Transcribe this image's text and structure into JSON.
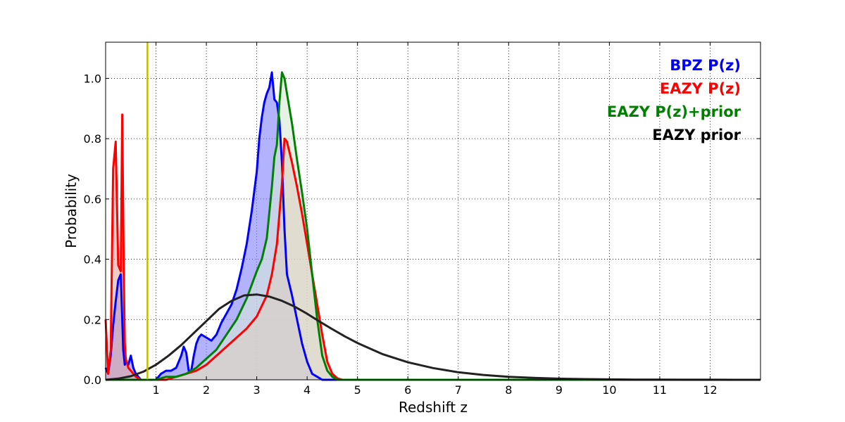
{
  "chart_data": {
    "type": "area",
    "title": "",
    "xlabel": "Redshift z",
    "ylabel": "Probability",
    "xlim": [
      0,
      13
    ],
    "ylim": [
      0,
      1.12
    ],
    "x_ticks": [
      1,
      2,
      3,
      4,
      5,
      6,
      7,
      8,
      9,
      10,
      11,
      12
    ],
    "x_tick_labels": [
      "1",
      "2",
      "3",
      "4",
      "5",
      "6",
      "7",
      "8",
      "9",
      "10",
      "11",
      "12"
    ],
    "y_ticks": [
      0,
      0.2,
      0.4,
      0.6,
      0.8,
      1.0
    ],
    "y_tick_labels": [
      "0.0",
      "0.2",
      "0.4",
      "0.6",
      "0.8",
      "1.0"
    ],
    "grid": true,
    "grid_style": "dotted",
    "legend_placement": "top-right",
    "reference_line": {
      "axis": "x",
      "value": 0.83,
      "color": "#bfbf00"
    },
    "series": [
      {
        "name": "BPZ P(z)",
        "color": "#0000ff",
        "fill": "#7f7fff",
        "filled": true,
        "x": [
          0.0,
          0.05,
          0.1,
          0.15,
          0.2,
          0.25,
          0.3,
          0.35,
          0.38,
          0.4,
          0.45,
          0.5,
          0.55,
          0.6,
          0.65,
          0.7,
          0.8,
          0.9,
          1.0,
          1.05,
          1.1,
          1.2,
          1.3,
          1.4,
          1.5,
          1.55,
          1.6,
          1.65,
          1.7,
          1.75,
          1.8,
          1.85,
          1.9,
          2.0,
          2.1,
          2.2,
          2.3,
          2.4,
          2.5,
          2.6,
          2.7,
          2.8,
          2.9,
          3.0,
          3.05,
          3.1,
          3.15,
          3.2,
          3.25,
          3.3,
          3.35,
          3.4,
          3.45,
          3.5,
          3.55,
          3.6,
          3.7,
          3.8,
          3.9,
          4.0,
          4.1,
          4.2,
          4.3,
          4.4,
          4.5,
          4.6,
          4.8,
          5.0,
          13.0
        ],
        "y": [
          0.04,
          0.02,
          0.08,
          0.18,
          0.26,
          0.33,
          0.35,
          0.1,
          0.05,
          0.06,
          0.05,
          0.08,
          0.04,
          0.02,
          0.01,
          0.0,
          0.0,
          0.0,
          0.0,
          0.01,
          0.02,
          0.03,
          0.03,
          0.04,
          0.08,
          0.11,
          0.09,
          0.03,
          0.03,
          0.08,
          0.12,
          0.14,
          0.15,
          0.14,
          0.13,
          0.15,
          0.19,
          0.22,
          0.25,
          0.3,
          0.37,
          0.45,
          0.56,
          0.69,
          0.8,
          0.87,
          0.92,
          0.95,
          0.97,
          1.02,
          0.93,
          0.92,
          0.86,
          0.72,
          0.5,
          0.35,
          0.28,
          0.2,
          0.12,
          0.06,
          0.02,
          0.01,
          0.0,
          0.0,
          0.0,
          0.0,
          0.0,
          0.0,
          0.0
        ]
      },
      {
        "name": "EAZY P(z)",
        "color": "#ff0000",
        "fill": "#e3a9a0",
        "filled": true,
        "x": [
          0.0,
          0.05,
          0.1,
          0.15,
          0.2,
          0.25,
          0.3,
          0.33,
          0.36,
          0.38,
          0.4,
          0.45,
          0.5,
          0.55,
          0.6,
          0.7,
          0.8,
          1.0,
          1.2,
          1.4,
          1.6,
          1.8,
          2.0,
          2.2,
          2.4,
          2.6,
          2.8,
          3.0,
          3.2,
          3.3,
          3.4,
          3.5,
          3.55,
          3.6,
          3.7,
          3.8,
          3.9,
          4.0,
          4.1,
          4.2,
          4.3,
          4.4,
          4.5,
          4.6,
          4.7,
          5.0,
          13.0
        ],
        "y": [
          0.2,
          0.02,
          0.1,
          0.7,
          0.79,
          0.38,
          0.36,
          0.88,
          0.35,
          0.12,
          0.07,
          0.04,
          0.03,
          0.02,
          0.01,
          0.0,
          0.0,
          0.0,
          0.0,
          0.01,
          0.02,
          0.03,
          0.05,
          0.08,
          0.11,
          0.14,
          0.17,
          0.21,
          0.28,
          0.35,
          0.45,
          0.65,
          0.8,
          0.79,
          0.72,
          0.64,
          0.55,
          0.45,
          0.35,
          0.25,
          0.15,
          0.06,
          0.02,
          0.005,
          0.0,
          0.0,
          0.0
        ]
      },
      {
        "name": "EAZY P(z)+prior",
        "color": "#008000",
        "fill": "#d7ead7",
        "filled": true,
        "x": [
          0.0,
          0.2,
          0.4,
          0.6,
          0.8,
          1.0,
          1.2,
          1.4,
          1.6,
          1.8,
          2.0,
          2.2,
          2.4,
          2.6,
          2.8,
          3.0,
          3.1,
          3.2,
          3.3,
          3.35,
          3.4,
          3.45,
          3.5,
          3.55,
          3.6,
          3.7,
          3.8,
          3.9,
          4.0,
          4.1,
          4.2,
          4.3,
          4.4,
          4.5,
          4.6,
          5.0,
          13.0
        ],
        "y": [
          0.0,
          0.0,
          0.0,
          0.0,
          0.0,
          0.0,
          0.01,
          0.01,
          0.02,
          0.04,
          0.07,
          0.1,
          0.15,
          0.2,
          0.27,
          0.36,
          0.4,
          0.47,
          0.64,
          0.74,
          0.78,
          0.92,
          1.02,
          1.0,
          0.95,
          0.85,
          0.73,
          0.62,
          0.5,
          0.35,
          0.2,
          0.08,
          0.03,
          0.01,
          0.0,
          0.0,
          0.0
        ]
      },
      {
        "name": "EAZY prior",
        "color": "#222222",
        "fill": "",
        "filled": false,
        "x": [
          0.0,
          0.25,
          0.5,
          0.75,
          1.0,
          1.25,
          1.5,
          1.75,
          2.0,
          2.25,
          2.5,
          2.75,
          3.0,
          3.25,
          3.5,
          3.75,
          4.0,
          4.25,
          4.5,
          4.75,
          5.0,
          5.5,
          6.0,
          6.5,
          7.0,
          7.5,
          8.0,
          8.5,
          9.0,
          9.5,
          10.0,
          10.5,
          11.0,
          11.5,
          12.0,
          12.5,
          13.0
        ],
        "y": [
          0.0,
          0.004,
          0.012,
          0.027,
          0.05,
          0.08,
          0.115,
          0.155,
          0.195,
          0.235,
          0.262,
          0.28,
          0.283,
          0.276,
          0.262,
          0.243,
          0.219,
          0.193,
          0.168,
          0.144,
          0.122,
          0.085,
          0.058,
          0.039,
          0.025,
          0.016,
          0.01,
          0.0062,
          0.0038,
          0.0023,
          0.0014,
          0.0008,
          0.0005,
          0.0003,
          0.0002,
          0.0001,
          0.0
        ]
      }
    ],
    "legend": [
      {
        "text": "BPZ P(z)",
        "color": "#0000ff"
      },
      {
        "text": "EAZY P(z)",
        "color": "#ff0000"
      },
      {
        "text": "EAZY P(z)+prior",
        "color": "#008000"
      },
      {
        "text": "EAZY prior",
        "color": "#000000"
      }
    ]
  }
}
